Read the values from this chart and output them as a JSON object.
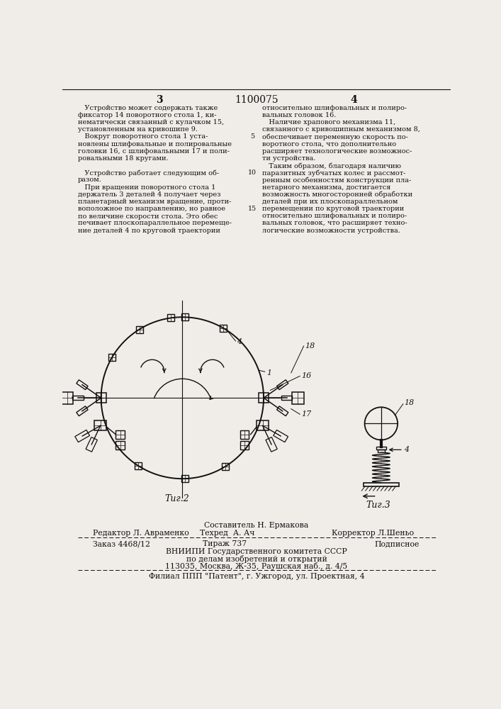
{
  "page_number_left": "3",
  "patent_number": "1100075",
  "page_number_right": "4",
  "col1_text_full": [
    "   Устройство может содержать также",
    "фиксатор 14 поворотного стола 1, ки-",
    "нематически связанный с кулачком 15,",
    "установленным на кривошипе 9.",
    "   Вокруг поворотного стола 1 уста-",
    "новлены шлифовальные и полировальные",
    "головки 16, с шлифовальными 17 и поли-",
    "ровальными 18 кругами.",
    "",
    "   Устройство работает следующим об-",
    "разом.",
    "   При вращении поворотного стола 1",
    "держатель 3 деталей 4 получает через",
    "планетарный механизм вращение, проти-",
    "воположное по направлению, но равное",
    "по величине скорости стола. Это обес",
    "печивает плоскопараллельное перемеще-",
    "ние деталей 4 по круговой траектории"
  ],
  "col2_text_full": [
    "относительно шлифовальных и полиро-",
    "вальных головок 16.",
    "   Наличие храпового механизма 11,",
    "связанного с кривошипным механизмом 8,",
    "обеспечивает переменную скорость по-",
    "воротного стола, что дополнительно",
    "расширяет технологические возможнос-",
    "ти устройства.",
    "   Таким образом, благодаря наличию",
    "паразитных зубчатых колес и рассмот-",
    "ренным особенностям конструкции пла-",
    "нетарного механизма, достигается",
    "возможность многосторонней обработки",
    "деталей при их плоскопараллельном",
    "перемещении по круговой траектории",
    "относительно шлифовальных и полиро-",
    "вальных головок, что расширяет техно-",
    "логические возможности устройства."
  ],
  "line_numbers": {
    "4": "5",
    "9": "10",
    "14": "15"
  },
  "fig2_label": "Τиг.2",
  "fig3_label": "Τиг.3",
  "footer_composer": "Составитель Н. Ермакова",
  "footer_editor": "Редактор Л. Авраменко",
  "footer_techred": "Техред  А. Ач",
  "footer_corrector": "Корректор Л.Шеньо",
  "footer_order": "Заказ 4468/12",
  "footer_tirazh": "Тираж 737",
  "footer_podpisnoe": "Подписное",
  "footer_vniip1": "ВНИИПИ Государственного комитета СССР",
  "footer_vniip2": "по делам изобретений и открытий",
  "footer_vniip3": "113035, Москва, Ж-35, Раушская наб., д. 4/5",
  "footer_filial": "Филиал ППП \"Патент\", г. Ужгород, ул. Проектная, 4",
  "bg_color": "#f0ede8",
  "text_color": "#111111",
  "line_color": "#111111"
}
